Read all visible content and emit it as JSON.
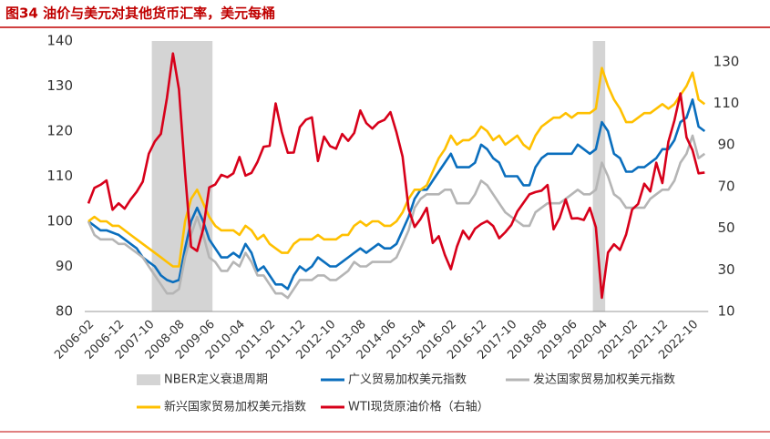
{
  "chart_data": {
    "type": "line",
    "title": "图34 油价与美元对其他货币汇率，美元每桶",
    "categories": [
      "2006-02",
      null,
      null,
      null,
      null,
      "2006-12",
      null,
      null,
      null,
      null,
      "2007-10",
      null,
      null,
      null,
      null,
      "2008-08",
      null,
      null,
      null,
      null,
      "2009-06",
      null,
      null,
      null,
      null,
      "2010-04",
      null,
      null,
      null,
      null,
      "2011-02",
      null,
      null,
      null,
      null,
      "2011-12",
      null,
      null,
      null,
      null,
      "2012-10",
      null,
      null,
      null,
      null,
      "2013-08",
      null,
      null,
      null,
      null,
      "2014-06",
      null,
      null,
      null,
      null,
      "2015-04",
      null,
      null,
      null,
      null,
      "2016-02",
      null,
      null,
      null,
      null,
      "2016-12",
      null,
      null,
      null,
      null,
      "2017-10",
      null,
      null,
      null,
      null,
      "2018-08",
      null,
      null,
      null,
      null,
      "2019-06",
      null,
      null,
      null,
      null,
      "2020-04",
      null,
      null,
      null,
      null,
      "2021-02",
      null,
      null,
      null,
      null,
      "2021-12",
      null,
      null,
      null,
      null,
      "2022-10",
      null,
      null
    ],
    "ylim": [
      80,
      140
    ],
    "yticks": [
      80,
      90,
      100,
      110,
      120,
      130,
      140
    ],
    "y2lim": [
      10,
      140
    ],
    "y2ticks": [
      10,
      30,
      50,
      70,
      90,
      110,
      130
    ],
    "series": [
      {
        "name": "NBER定义衰退周期",
        "type": "bar",
        "color": "#d4d4d4",
        "values": [
          null,
          null,
          null,
          null,
          null,
          null,
          null,
          null,
          null,
          null,
          null,
          140,
          140,
          140,
          140,
          140,
          140,
          140,
          140,
          140,
          140,
          null,
          null,
          null,
          null,
          null,
          null,
          null,
          null,
          null,
          null,
          null,
          null,
          null,
          null,
          null,
          null,
          null,
          null,
          null,
          null,
          null,
          null,
          null,
          null,
          null,
          null,
          null,
          null,
          null,
          null,
          null,
          null,
          null,
          null,
          null,
          null,
          null,
          null,
          null,
          null,
          null,
          null,
          null,
          null,
          null,
          null,
          null,
          null,
          null,
          null,
          null,
          null,
          null,
          null,
          null,
          null,
          null,
          null,
          null,
          null,
          null,
          null,
          null,
          140,
          140,
          null,
          null,
          null,
          null,
          null,
          null,
          null,
          null,
          null,
          null,
          null,
          null,
          null,
          null,
          null,
          null,
          null
        ]
      },
      {
        "name": "广义贸易加权美元指数",
        "type": "line",
        "color": "#0a6ebd",
        "values": [
          100,
          99,
          98,
          98,
          97.5,
          97,
          96,
          95,
          94,
          92,
          91,
          90,
          88,
          87,
          86.5,
          87,
          94,
          100,
          103,
          100,
          96,
          94,
          92,
          92,
          93,
          92,
          95,
          93,
          89,
          90,
          88,
          86,
          86,
          85,
          88,
          90,
          89,
          90,
          92,
          91,
          90,
          90,
          91,
          92,
          93,
          94,
          93,
          94,
          95,
          94,
          94,
          95,
          98,
          101,
          105,
          107,
          107,
          109,
          111,
          113,
          115,
          112,
          112,
          112,
          113,
          117,
          116,
          114,
          113,
          110,
          110,
          110,
          108,
          108,
          112,
          114,
          115,
          115,
          115,
          115,
          115,
          117,
          116,
          115,
          116,
          122,
          120,
          115,
          114,
          111,
          111,
          112,
          112,
          113,
          114,
          116,
          116,
          118,
          122,
          123,
          127,
          121,
          120
        ]
      },
      {
        "name": "发达国家贸易加权美元指数",
        "type": "line",
        "color": "#b5b5b5",
        "values": [
          100,
          97,
          96,
          96,
          96,
          95,
          95,
          94,
          93,
          92,
          90,
          88,
          86,
          84,
          84,
          85,
          92,
          97,
          101,
          97,
          92,
          91,
          89,
          89,
          91,
          90,
          93,
          91,
          88,
          88,
          86,
          84,
          84,
          83,
          85,
          87,
          87,
          87,
          88,
          88,
          87,
          87,
          88,
          89,
          91,
          90,
          90,
          91,
          91,
          91,
          91,
          92,
          95,
          98,
          103,
          105,
          106,
          106,
          106,
          107,
          107,
          104,
          104,
          104,
          106,
          109,
          108,
          106,
          104,
          102,
          101,
          100,
          99,
          99,
          102,
          103,
          104,
          104,
          104,
          105,
          106,
          107,
          106,
          106,
          107,
          113,
          110,
          106,
          105,
          103,
          103,
          103,
          103,
          105,
          106,
          107,
          107,
          109,
          113,
          115,
          119,
          114,
          115
        ]
      },
      {
        "name": "新兴国家贸易加权美元指数",
        "type": "line",
        "color": "#ffc000",
        "values": [
          100,
          101,
          100,
          100,
          99,
          99,
          98,
          97,
          96,
          95,
          94,
          93,
          92,
          91,
          90,
          90,
          100,
          105,
          107,
          104,
          101,
          99,
          98,
          98,
          98,
          97,
          99,
          98,
          96,
          97,
          95,
          94,
          93,
          93,
          95,
          96,
          96,
          96,
          97,
          96,
          96,
          96,
          97,
          97,
          99,
          100,
          99,
          100,
          100,
          99,
          99,
          100,
          102,
          105,
          107,
          107,
          108,
          111,
          114,
          116,
          119,
          117,
          118,
          118,
          119,
          121,
          120,
          118,
          119,
          117,
          118,
          119,
          117,
          116,
          119,
          121,
          122,
          123,
          123,
          124,
          123,
          124,
          124,
          124,
          125,
          134,
          130,
          127,
          125,
          122,
          122,
          123,
          124,
          124,
          125,
          126,
          125,
          126,
          128,
          130,
          133,
          127,
          126
        ]
      },
      {
        "name": "WTI现货原油价格（右轴）",
        "type": "line",
        "axis": "y2",
        "color": "#d7001a",
        "values": [
          61.9,
          69.4,
          70.9,
          73.0,
          58.9,
          62.0,
          59.4,
          63.9,
          67.5,
          72.4,
          85.8,
          91.7,
          95.4,
          112.6,
          134.0,
          116.7,
          76.6,
          41.1,
          39.1,
          49.6,
          69.6,
          71.0,
          75.7,
          74.5,
          76.4,
          84.3,
          75.3,
          76.6,
          81.9,
          89.2,
          89.6,
          110.0,
          96.3,
          86.3,
          86.4,
          98.6,
          102.2,
          103.3,
          82.3,
          94.1,
          89.5,
          88.2,
          95.3,
          92.0,
          95.8,
          106.6,
          100.5,
          97.9,
          100.8,
          102.1,
          105.8,
          96.1,
          84.4,
          59.3,
          50.6,
          54.5,
          59.8,
          42.9,
          46.2,
          37.2,
          30.3,
          41.1,
          48.8,
          44.8,
          49.8,
          52.0,
          53.5,
          51.1,
          45.2,
          48.1,
          51.6,
          58.0,
          62.2,
          66.3,
          67.4,
          68.1,
          70.8,
          49.5,
          54.9,
          63.9,
          54.7,
          54.8,
          54.0,
          59.8,
          50.5,
          16.6,
          38.3,
          42.3,
          39.6,
          47.0,
          59.0,
          61.7,
          71.4,
          67.7,
          81.5,
          71.7,
          91.6,
          101.8,
          114.8,
          93.7,
          87.5,
          76.4,
          76.8
        ]
      }
    ]
  }
}
